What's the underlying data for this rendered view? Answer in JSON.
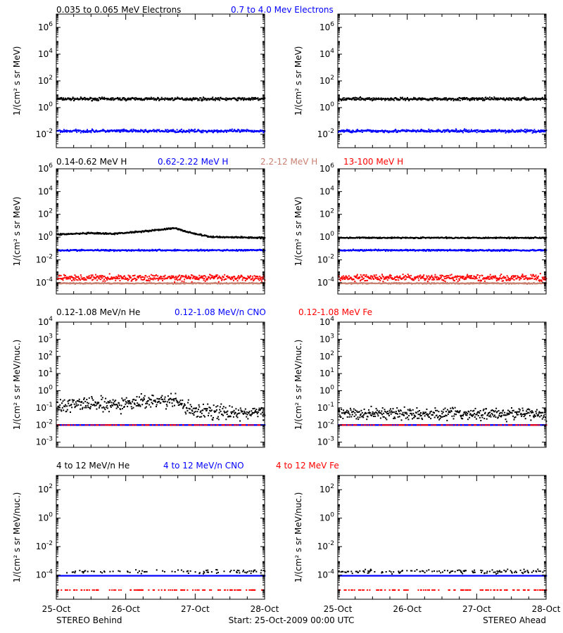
{
  "colors": {
    "black": "#000000",
    "blue": "#0000ff",
    "salmon": "#c88070",
    "red": "#ff0000"
  },
  "footer": {
    "left": "STEREO Behind",
    "center": "Start: 25-Oct-2009 00:00 UTC",
    "right": "STEREO Ahead"
  },
  "x_ticks": [
    "25-Oct",
    "26-Oct",
    "27-Oct",
    "28-Oct"
  ],
  "chart_data": [
    {
      "type": "scatter",
      "panel": "electrons",
      "spacecraft": "STEREO Behind",
      "ylabel": "1/(cm² s sr MeV)",
      "yscale": "log",
      "ylim": [
        0.001,
        10000000
      ],
      "yticks": [
        {
          "base": "10",
          "exp": "-2",
          "v": 0.01
        },
        {
          "base": "10",
          "exp": "0",
          "v": 1
        },
        {
          "base": "10",
          "exp": "2",
          "v": 100
        },
        {
          "base": "10",
          "exp": "4",
          "v": 10000
        },
        {
          "base": "10",
          "exp": "6",
          "v": 1000000
        }
      ],
      "x": [
        0,
        3
      ],
      "x_unit": "days since 25-Oct-2009 00:00 UTC",
      "series": [
        {
          "name": "0.035 to 0.065 MeV Electrons",
          "color": "#000000",
          "level": 5,
          "spread": 0.08
        },
        {
          "name": "0.7 to 4.0 Mev Electrons",
          "color": "#0000ff",
          "level": 0.02,
          "spread": 0.08
        }
      ]
    },
    {
      "type": "scatter",
      "panel": "electrons",
      "spacecraft": "STEREO Ahead",
      "ylabel": "1/(cm² s sr MeV)",
      "yscale": "log",
      "ylim": [
        0.001,
        10000000
      ],
      "yticks": [
        {
          "base": "10",
          "exp": "-2",
          "v": 0.01
        },
        {
          "base": "10",
          "exp": "0",
          "v": 1
        },
        {
          "base": "10",
          "exp": "2",
          "v": 100
        },
        {
          "base": "10",
          "exp": "4",
          "v": 10000
        },
        {
          "base": "10",
          "exp": "6",
          "v": 1000000
        }
      ],
      "x": [
        0,
        3
      ],
      "series": [
        {
          "name": "0.035 to 0.065 MeV Electrons",
          "color": "#000000",
          "level": 5,
          "spread": 0.08
        },
        {
          "name": "0.7 to 4.0 Mev Electrons",
          "color": "#0000ff",
          "level": 0.02,
          "spread": 0.08
        }
      ]
    },
    {
      "type": "scatter",
      "panel": "protons",
      "spacecraft": "STEREO Behind",
      "ylabel": "1/(cm² s sr MeV)",
      "yscale": "log",
      "ylim": [
        1e-05,
        1000000
      ],
      "yticks": [
        {
          "base": "10",
          "exp": "-4",
          "v": 0.0001
        },
        {
          "base": "10",
          "exp": "-2",
          "v": 0.01
        },
        {
          "base": "10",
          "exp": "0",
          "v": 1
        },
        {
          "base": "10",
          "exp": "2",
          "v": 100
        },
        {
          "base": "10",
          "exp": "4",
          "v": 10000
        },
        {
          "base": "10",
          "exp": "6",
          "v": 1000000
        }
      ],
      "x": [
        0,
        3
      ],
      "series": [
        {
          "name": "0.14-0.62 MeV H",
          "color": "#000000",
          "level": 2,
          "spread": 0.05,
          "profile": [
            [
              0,
              2
            ],
            [
              0.5,
              2.5
            ],
            [
              0.8,
              2.2
            ],
            [
              1.3,
              4
            ],
            [
              1.7,
              7
            ],
            [
              1.9,
              3
            ],
            [
              2.2,
              1.2
            ],
            [
              3,
              1
            ]
          ]
        },
        {
          "name": "0.62-2.22 MeV H",
          "color": "#0000ff",
          "level": 0.08,
          "spread": 0.05
        },
        {
          "name": "2.2-12 MeV H",
          "color": "#c88070",
          "level": 0.0001,
          "spread": 0.04
        },
        {
          "name": "13-100 MeV H",
          "color": "#ff0000",
          "level": 0.0003,
          "spread": 0.2
        }
      ]
    },
    {
      "type": "scatter",
      "panel": "protons",
      "spacecraft": "STEREO Ahead",
      "ylabel": "1/(cm² s sr MeV)",
      "yscale": "log",
      "ylim": [
        1e-05,
        1000000
      ],
      "yticks": [
        {
          "base": "10",
          "exp": "-4",
          "v": 0.0001
        },
        {
          "base": "10",
          "exp": "-2",
          "v": 0.01
        },
        {
          "base": "10",
          "exp": "0",
          "v": 1
        },
        {
          "base": "10",
          "exp": "2",
          "v": 100
        },
        {
          "base": "10",
          "exp": "4",
          "v": 10000
        },
        {
          "base": "10",
          "exp": "6",
          "v": 1000000
        }
      ],
      "x": [
        0,
        3
      ],
      "series": [
        {
          "name": "0.14-0.62 MeV H",
          "color": "#000000",
          "level": 1,
          "spread": 0.04
        },
        {
          "name": "0.62-2.22 MeV H",
          "color": "#0000ff",
          "level": 0.08,
          "spread": 0.05
        },
        {
          "name": "2.2-12 MeV H",
          "color": "#c88070",
          "level": 0.0001,
          "spread": 0.04
        },
        {
          "name": "13-100 MeV H",
          "color": "#ff0000",
          "level": 0.0003,
          "spread": 0.2
        }
      ]
    },
    {
      "type": "scatter",
      "panel": "heavy-low",
      "spacecraft": "STEREO Behind",
      "ylabel": "1/(cm² s sr MeV/nuc.)",
      "yscale": "log",
      "ylim": [
        0.0005,
        10000
      ],
      "yticks": [
        {
          "base": "10",
          "exp": "-3",
          "v": 0.001
        },
        {
          "base": "10",
          "exp": "-2",
          "v": 0.01
        },
        {
          "base": "10",
          "exp": "-1",
          "v": 0.1
        },
        {
          "base": "10",
          "exp": "0",
          "v": 1
        },
        {
          "base": "10",
          "exp": "1",
          "v": 10
        },
        {
          "base": "10",
          "exp": "2",
          "v": 100
        },
        {
          "base": "10",
          "exp": "3",
          "v": 1000
        },
        {
          "base": "10",
          "exp": "4",
          "v": 10000
        }
      ],
      "x": [
        0,
        3
      ],
      "series": [
        {
          "name": "0.12-1.08 MeV/n He",
          "color": "#000000",
          "level": 0.05,
          "spread": 0.3,
          "profile": [
            [
              0,
              0.12
            ],
            [
              0.3,
              0.2
            ],
            [
              0.9,
              0.15
            ],
            [
              1.3,
              0.3
            ],
            [
              1.7,
              0.25
            ],
            [
              2.0,
              0.07
            ],
            [
              3,
              0.05
            ]
          ]
        },
        {
          "name": "0.12-1.08 MeV/n CNO",
          "color": "#0000ff",
          "level": 0.011,
          "spread": 0.0
        },
        {
          "name": "0.12-1.08 MeV Fe",
          "color": "#ff0000",
          "level": 0.011,
          "spread": 0.0,
          "sparse": true
        }
      ]
    },
    {
      "type": "scatter",
      "panel": "heavy-low",
      "spacecraft": "STEREO Ahead",
      "ylabel": "1/(cm² s sr MeV/nuc.)",
      "yscale": "log",
      "ylim": [
        0.0005,
        10000
      ],
      "yticks": [
        {
          "base": "10",
          "exp": "-3",
          "v": 0.001
        },
        {
          "base": "10",
          "exp": "-2",
          "v": 0.01
        },
        {
          "base": "10",
          "exp": "-1",
          "v": 0.1
        },
        {
          "base": "10",
          "exp": "0",
          "v": 1
        },
        {
          "base": "10",
          "exp": "1",
          "v": 10
        },
        {
          "base": "10",
          "exp": "2",
          "v": 100
        },
        {
          "base": "10",
          "exp": "3",
          "v": 1000
        },
        {
          "base": "10",
          "exp": "4",
          "v": 10000
        }
      ],
      "x": [
        0,
        3
      ],
      "series": [
        {
          "name": "0.12-1.08 MeV/n He",
          "color": "#000000",
          "level": 0.05,
          "spread": 0.25
        },
        {
          "name": "0.12-1.08 MeV/n CNO",
          "color": "#0000ff",
          "level": 0.011,
          "spread": 0.0
        },
        {
          "name": "0.12-1.08 MeV Fe",
          "color": "#ff0000",
          "level": 0.011,
          "spread": 0.0,
          "sparse": true
        }
      ]
    },
    {
      "type": "scatter",
      "panel": "heavy-high",
      "spacecraft": "STEREO Behind",
      "ylabel": "1/(cm² s sr MeV/nuc.)",
      "yscale": "log",
      "ylim": [
        2e-06,
        1000
      ],
      "yticks": [
        {
          "base": "10",
          "exp": "-4",
          "v": 0.0001
        },
        {
          "base": "10",
          "exp": "-2",
          "v": 0.01
        },
        {
          "base": "10",
          "exp": "0",
          "v": 1
        },
        {
          "base": "10",
          "exp": "2",
          "v": 100
        }
      ],
      "x": [
        0,
        3
      ],
      "series": [
        {
          "name": "4 to 12 MeV/n He",
          "color": "#000000",
          "level": 0.0002,
          "spread": 0.1,
          "sparse": true
        },
        {
          "name": "4 to 12 MeV/n CNO",
          "color": "#0000ff",
          "level": 0.0001,
          "spread": 0.0
        },
        {
          "name": "4 to 12 MeV Fe",
          "color": "#ff0000",
          "level": 1e-05,
          "spread": 0.0,
          "sparse": true
        }
      ]
    },
    {
      "type": "scatter",
      "panel": "heavy-high",
      "spacecraft": "STEREO Ahead",
      "ylabel": "1/(cm² s sr MeV/nuc.)",
      "yscale": "log",
      "ylim": [
        2e-06,
        1000
      ],
      "yticks": [
        {
          "base": "10",
          "exp": "-4",
          "v": 0.0001
        },
        {
          "base": "10",
          "exp": "-2",
          "v": 0.01
        },
        {
          "base": "10",
          "exp": "0",
          "v": 1
        },
        {
          "base": "10",
          "exp": "2",
          "v": 100
        }
      ],
      "x": [
        0,
        3
      ],
      "series": [
        {
          "name": "4 to 12 MeV/n He",
          "color": "#000000",
          "level": 0.0002,
          "spread": 0.1,
          "sparse": true
        },
        {
          "name": "4 to 12 MeV/n CNO",
          "color": "#0000ff",
          "level": 0.0001,
          "spread": 0.0
        },
        {
          "name": "4 to 12 MeV Fe",
          "color": "#ff0000",
          "level": 1e-05,
          "spread": 0.0,
          "sparse": true
        }
      ]
    }
  ]
}
